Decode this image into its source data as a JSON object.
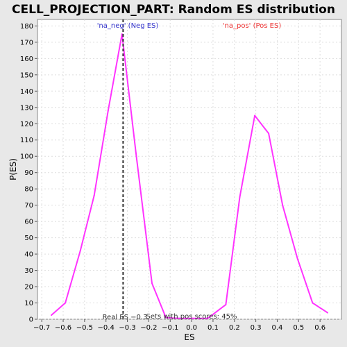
{
  "chart_data": {
    "type": "line",
    "title": "CELL_PROJECTION_PART: Random ES distribution",
    "xlabel": "ES",
    "ylabel": "P(ES)",
    "xlim": [
      -0.72,
      0.7
    ],
    "ylim": [
      0,
      184
    ],
    "xticks": [
      "-0.7",
      "-0.6",
      "-0.5",
      "-0.4",
      "-0.3",
      "-0.2",
      "-0.1",
      "0.0",
      "0.1",
      "0.2",
      "0.3",
      "0.4",
      "0.5",
      "0.6"
    ],
    "yticks": [
      "0",
      "10",
      "20",
      "30",
      "40",
      "50",
      "60",
      "70",
      "80",
      "90",
      "100",
      "110",
      "120",
      "130",
      "140",
      "150",
      "160",
      "170",
      "180"
    ],
    "grid": true,
    "series": [
      {
        "color": "#ff33ff",
        "x": [
          -0.655,
          -0.59,
          -0.52,
          -0.455,
          -0.39,
          -0.325,
          -0.26,
          -0.185,
          -0.12,
          -0.055,
          0.01,
          0.075,
          0.16,
          0.225,
          0.295,
          0.36,
          0.425,
          0.495,
          0.565,
          0.635
        ],
        "y": [
          2.5,
          10,
          42,
          76,
          128,
          175,
          102,
          22,
          1,
          0.5,
          0.5,
          0.5,
          9,
          75,
          125,
          114,
          70,
          37,
          10,
          4
        ]
      }
    ],
    "real_es": -0.32,
    "annotations": {
      "neg_label": "'na_neg' (Neg ES)",
      "pos_label": "'na_pos' (Pos ES)",
      "real_es_label": "Real ES −0.3",
      "pos_scores_label": "Sets with pos scores: 45%"
    },
    "colors": {
      "neg": "#3333cc",
      "pos": "#ee3333",
      "line": "#ff33ff"
    }
  }
}
